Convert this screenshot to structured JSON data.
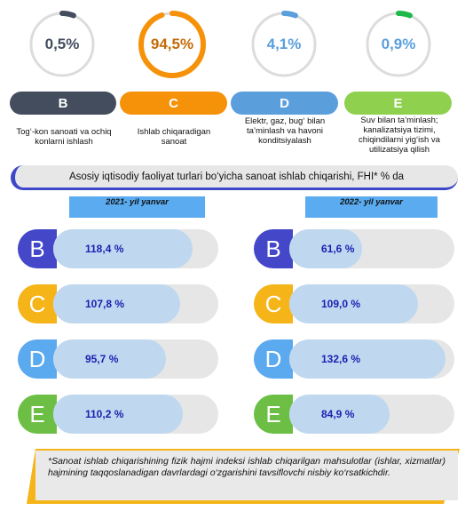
{
  "rings": [
    {
      "value": "0,5%",
      "color": "#444d5e",
      "fraction": 0.005
    },
    {
      "value": "94,5%",
      "color": "#f5920a",
      "fraction": 0.945
    },
    {
      "value": "4,1%",
      "color": "#5a9fdc",
      "fraction": 0.041
    },
    {
      "value": "0,9%",
      "color": "#1fb84a",
      "fraction": 0.009
    }
  ],
  "sections": [
    {
      "letter": "B",
      "color": "#444d5e",
      "desc": "Tog‘-kon sanoati va ochiq konlarni ishlash"
    },
    {
      "letter": "C",
      "color": "#f5920a",
      "desc": "Ishlab chiqaradigan sanoat"
    },
    {
      "letter": "D",
      "color": "#5a9fdc",
      "desc": "Elektr, gaz, bug‘ bilan ta’minlash va havoni konditsiyalash"
    },
    {
      "letter": "E",
      "color": "#8fd14f",
      "desc": "Suv bilan ta’minlash; kanalizatsiya tizimi, chiqindilarni yig‘ish va utilizatsiya qilish"
    }
  ],
  "banner": "Asosiy iqtisodiy faoliyat turlari bo‘yicha sanoat ishlab chiqarishi, FHI* % da",
  "year_headers": [
    "2021- yil yanvar",
    "2022- yil yanvar"
  ],
  "letter_colors": {
    "B": "#4347c8",
    "C": "#f5b418",
    "D": "#5ba9ee",
    "E": "#6cbf44"
  },
  "chart_data": [
    {
      "type": "bar",
      "title": "2021- yil yanvar",
      "categories": [
        "B",
        "C",
        "D",
        "E"
      ],
      "values": [
        118.4,
        107.8,
        95.7,
        110.2
      ],
      "labels": [
        "118,4 %",
        "107,8 %",
        "95,7 %",
        "110,2 %"
      ]
    },
    {
      "type": "bar",
      "title": "2022- yil yanvar",
      "categories": [
        "B",
        "C",
        "D",
        "E"
      ],
      "values": [
        61.6,
        109.0,
        132.6,
        84.9
      ],
      "labels": [
        "61,6 %",
        "109,0 %",
        "132,6 %",
        "84,9 %"
      ]
    }
  ],
  "footnote": "*Sanoat ishlab chiqarishining fizik hajmi indeksi ishlab chiqarilgan mahsulotlar (ishlar, xizmatlar) hajmining taqqoslanadigan davrlardagi o‘zgarishini tavsiflovchi nisbiy ko‘rsatkichdir."
}
